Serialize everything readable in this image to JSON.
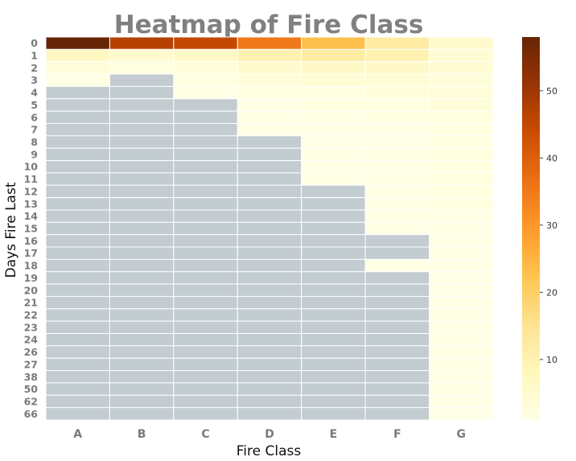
{
  "chart_data": {
    "type": "heatmap",
    "title": "Heatmap of Fire Class",
    "xlabel": "Fire Class",
    "ylabel": "Days Fire Last",
    "columns": [
      "A",
      "B",
      "C",
      "D",
      "E",
      "F",
      "G"
    ],
    "rows": [
      "0",
      "1",
      "2",
      "3",
      "4",
      "5",
      "6",
      "7",
      "8",
      "9",
      "10",
      "11",
      "12",
      "13",
      "14",
      "15",
      "16",
      "17",
      "18",
      "19",
      "20",
      "21",
      "22",
      "23",
      "24",
      "26",
      "27",
      "38",
      "50",
      "62",
      "66"
    ],
    "values": [
      [
        58,
        47,
        45,
        35,
        23,
        12,
        5
      ],
      [
        7,
        5,
        6,
        10,
        12,
        10,
        4
      ],
      [
        3,
        2,
        3,
        5,
        6,
        6,
        4
      ],
      [
        1,
        null,
        2,
        3,
        4,
        4,
        3
      ],
      [
        null,
        null,
        1,
        2,
        2,
        3,
        3
      ],
      [
        null,
        null,
        null,
        1,
        2,
        2,
        3
      ],
      [
        null,
        null,
        null,
        1,
        1,
        2,
        2
      ],
      [
        null,
        null,
        null,
        1,
        1,
        1,
        2
      ],
      [
        null,
        null,
        null,
        null,
        1,
        1,
        2
      ],
      [
        null,
        null,
        null,
        null,
        1,
        1,
        2
      ],
      [
        null,
        null,
        null,
        null,
        1,
        1,
        2
      ],
      [
        null,
        null,
        null,
        null,
        1,
        1,
        2
      ],
      [
        null,
        null,
        null,
        null,
        null,
        1,
        2
      ],
      [
        null,
        null,
        null,
        null,
        null,
        1,
        2
      ],
      [
        null,
        null,
        null,
        null,
        null,
        1,
        1
      ],
      [
        null,
        null,
        null,
        null,
        null,
        1,
        1
      ],
      [
        null,
        null,
        null,
        null,
        null,
        null,
        1
      ],
      [
        null,
        null,
        null,
        null,
        null,
        null,
        1
      ],
      [
        null,
        null,
        null,
        null,
        null,
        1,
        1
      ],
      [
        null,
        null,
        null,
        null,
        null,
        null,
        1
      ],
      [
        null,
        null,
        null,
        null,
        null,
        null,
        1
      ],
      [
        null,
        null,
        null,
        null,
        null,
        null,
        1
      ],
      [
        null,
        null,
        null,
        null,
        null,
        null,
        1
      ],
      [
        null,
        null,
        null,
        null,
        null,
        null,
        1
      ],
      [
        null,
        null,
        null,
        null,
        null,
        null,
        1
      ],
      [
        null,
        null,
        null,
        null,
        null,
        null,
        1
      ],
      [
        null,
        null,
        null,
        null,
        null,
        null,
        1
      ],
      [
        null,
        null,
        null,
        null,
        null,
        null,
        1
      ],
      [
        null,
        null,
        null,
        null,
        null,
        null,
        1
      ],
      [
        null,
        null,
        null,
        null,
        null,
        null,
        1
      ],
      [
        null,
        null,
        null,
        null,
        null,
        null,
        1
      ]
    ],
    "missing_color": "#c2ccd1",
    "colormap": "YlOrBr",
    "colorbar": {
      "min": 1,
      "max": 58,
      "ticks": [
        10,
        20,
        30,
        40,
        50
      ]
    }
  }
}
